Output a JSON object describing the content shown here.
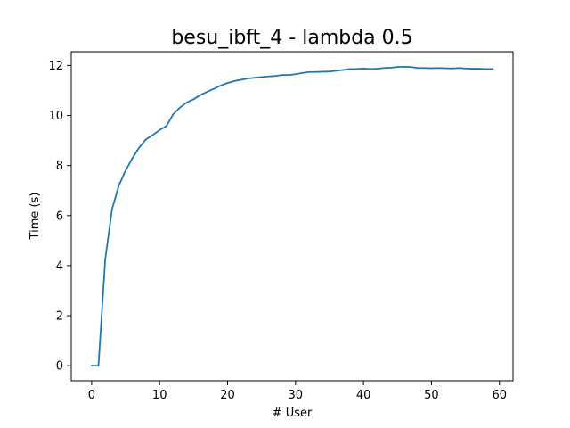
{
  "chart_data": {
    "type": "line",
    "title": "besu_ibft_4 - lambda 0.5",
    "xlabel": "# User",
    "ylabel": "Time (s)",
    "xlim": [
      -3,
      62
    ],
    "ylim": [
      -0.6,
      12.55
    ],
    "xticks": [
      0,
      10,
      20,
      30,
      40,
      50,
      60
    ],
    "yticks": [
      0,
      2,
      4,
      6,
      8,
      10,
      12
    ],
    "grid": false,
    "colors": {
      "series": "#1f77b4",
      "axes": "#000000"
    },
    "series": [
      {
        "x": [
          0,
          1,
          2,
          3,
          4,
          5,
          6,
          7,
          8,
          9,
          10,
          11,
          12,
          13,
          14,
          15,
          16,
          17,
          18,
          19,
          20,
          21,
          22,
          23,
          24,
          25,
          26,
          27,
          28,
          29,
          30,
          31,
          32,
          33,
          34,
          35,
          36,
          37,
          38,
          39,
          40,
          41,
          42,
          43,
          44,
          45,
          46,
          47,
          48,
          49,
          50,
          51,
          52,
          53,
          54,
          55,
          56,
          57,
          58,
          59
        ],
        "y": [
          0.0,
          0.0,
          4.25,
          6.25,
          7.2,
          7.8,
          8.3,
          8.72,
          9.05,
          9.22,
          9.42,
          9.58,
          10.05,
          10.32,
          10.52,
          10.65,
          10.82,
          10.95,
          11.07,
          11.2,
          11.3,
          11.38,
          11.43,
          11.48,
          11.51,
          11.54,
          11.56,
          11.58,
          11.62,
          11.62,
          11.65,
          11.7,
          11.74,
          11.74,
          11.75,
          11.76,
          11.79,
          11.82,
          11.86,
          11.86,
          11.88,
          11.86,
          11.87,
          11.9,
          11.91,
          11.94,
          11.95,
          11.94,
          11.9,
          11.9,
          11.89,
          11.9,
          11.89,
          11.88,
          11.9,
          11.88,
          11.87,
          11.87,
          11.86,
          11.86
        ]
      }
    ]
  }
}
